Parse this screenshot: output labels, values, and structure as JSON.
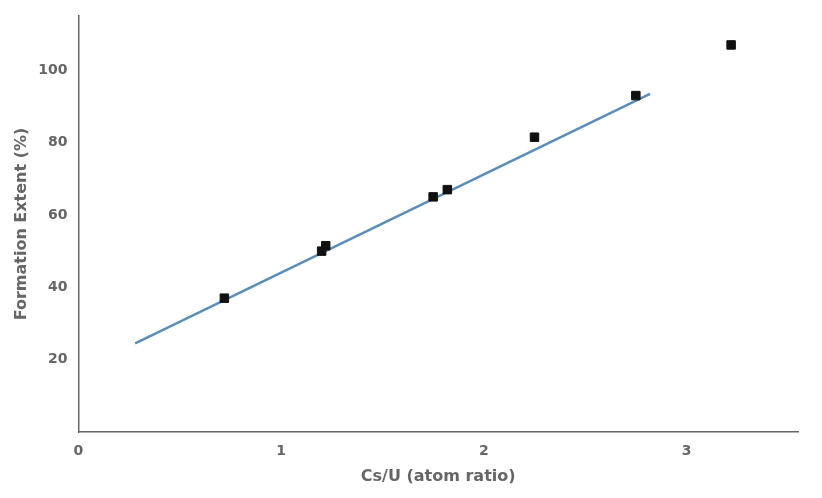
{
  "chart_data": {
    "type": "scatter",
    "xlabel": "Cs/U (atom ratio)",
    "ylabel": "Formation Extent (%)",
    "xlim": [
      0,
      3.55
    ],
    "ylim": [
      0,
      115
    ],
    "xticks": [
      0,
      1,
      2,
      3
    ],
    "yticks": [
      20,
      40,
      60,
      80,
      100
    ],
    "grid": false,
    "series": [
      {
        "type": "line",
        "color": "#5b8db8",
        "line_style": "solid",
        "x": [
          0.28,
          2.82
        ],
        "values": [
          24.5,
          93.5
        ]
      },
      {
        "type": "scatter",
        "color": "#111111",
        "marker": "square",
        "x": [
          0.72,
          1.2,
          1.22,
          1.75,
          1.82,
          2.25,
          2.75,
          3.22
        ],
        "values": [
          37.0,
          50.0,
          51.5,
          65.0,
          67.0,
          81.5,
          93.0,
          107.0
        ]
      }
    ]
  }
}
